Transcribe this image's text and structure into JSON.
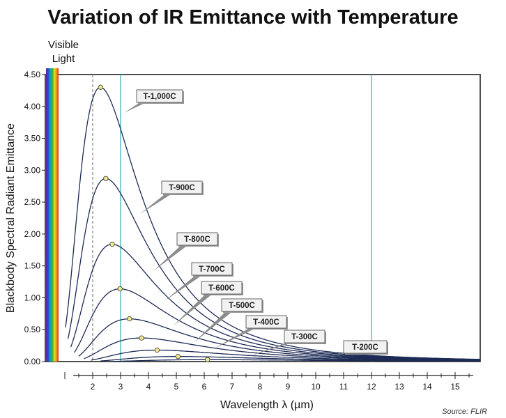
{
  "chart_data": {
    "type": "line",
    "title": "Variation of IR Emittance with Temperature",
    "xlabel": "Wavelength λ (µm)",
    "ylabel": "Blackbody Spectral Radiant Emittance",
    "visible_light_label": [
      "Visible",
      "Light"
    ],
    "source": "Source: FLIR",
    "xlim": [
      0.3,
      15.9
    ],
    "ylim": [
      0,
      4.5
    ],
    "x_ticks": [
      2,
      3,
      4,
      5,
      6,
      7,
      8,
      9,
      10,
      11,
      12,
      13,
      14,
      15
    ],
    "x_tick_labels": [
      "2",
      "3",
      "4",
      "5",
      "6",
      "7",
      "8",
      "9",
      "10",
      "11",
      "12",
      "13",
      "14",
      "15"
    ],
    "y_ticks": [
      0,
      0.5,
      1,
      1.5,
      2,
      2.5,
      3,
      3.5,
      4,
      4.5
    ],
    "y_tick_labels": [
      "0.00",
      "0.50",
      "1.00",
      "1.50",
      "2.00",
      "2.50",
      "3.00",
      "3.50",
      "4.00",
      "4.50"
    ],
    "reference_lines": [
      {
        "x": 2.0,
        "style": "dashed",
        "color": "#8a8a8a"
      },
      {
        "x": 3.0,
        "style": "solid",
        "color": "#3fb3c2"
      },
      {
        "x": 12.0,
        "style": "solid",
        "color": "#3fb3c2"
      }
    ],
    "visible_band_x": [
      0.4,
      0.7
    ],
    "series": [
      {
        "name": "T-1,000C",
        "peak_x": 2.28,
        "peak_y": 4.3
      },
      {
        "name": "T-900C",
        "peak_x": 2.47,
        "peak_y": 2.87
      },
      {
        "name": "T-800C",
        "peak_x": 2.7,
        "peak_y": 1.84
      },
      {
        "name": "T-700C",
        "peak_x": 2.98,
        "peak_y": 1.14
      },
      {
        "name": "T-600C",
        "peak_x": 3.32,
        "peak_y": 0.67
      },
      {
        "name": "T-500C",
        "peak_x": 3.75,
        "peak_y": 0.37
      },
      {
        "name": "T-400C",
        "peak_x": 4.31,
        "peak_y": 0.18
      },
      {
        "name": "T-300C",
        "peak_x": 5.06,
        "peak_y": 0.08
      },
      {
        "name": "T-200C",
        "peak_x": 6.12,
        "peak_y": 0.03
      }
    ],
    "colors": {
      "curve": "#1c2a55",
      "peak_marker": "#f3ea8a",
      "reference_cyan": "#3fb3c2",
      "tag_fill": "#f2f2f2",
      "tag_stroke": "#555555",
      "pointer": "#8c8c8c"
    }
  }
}
